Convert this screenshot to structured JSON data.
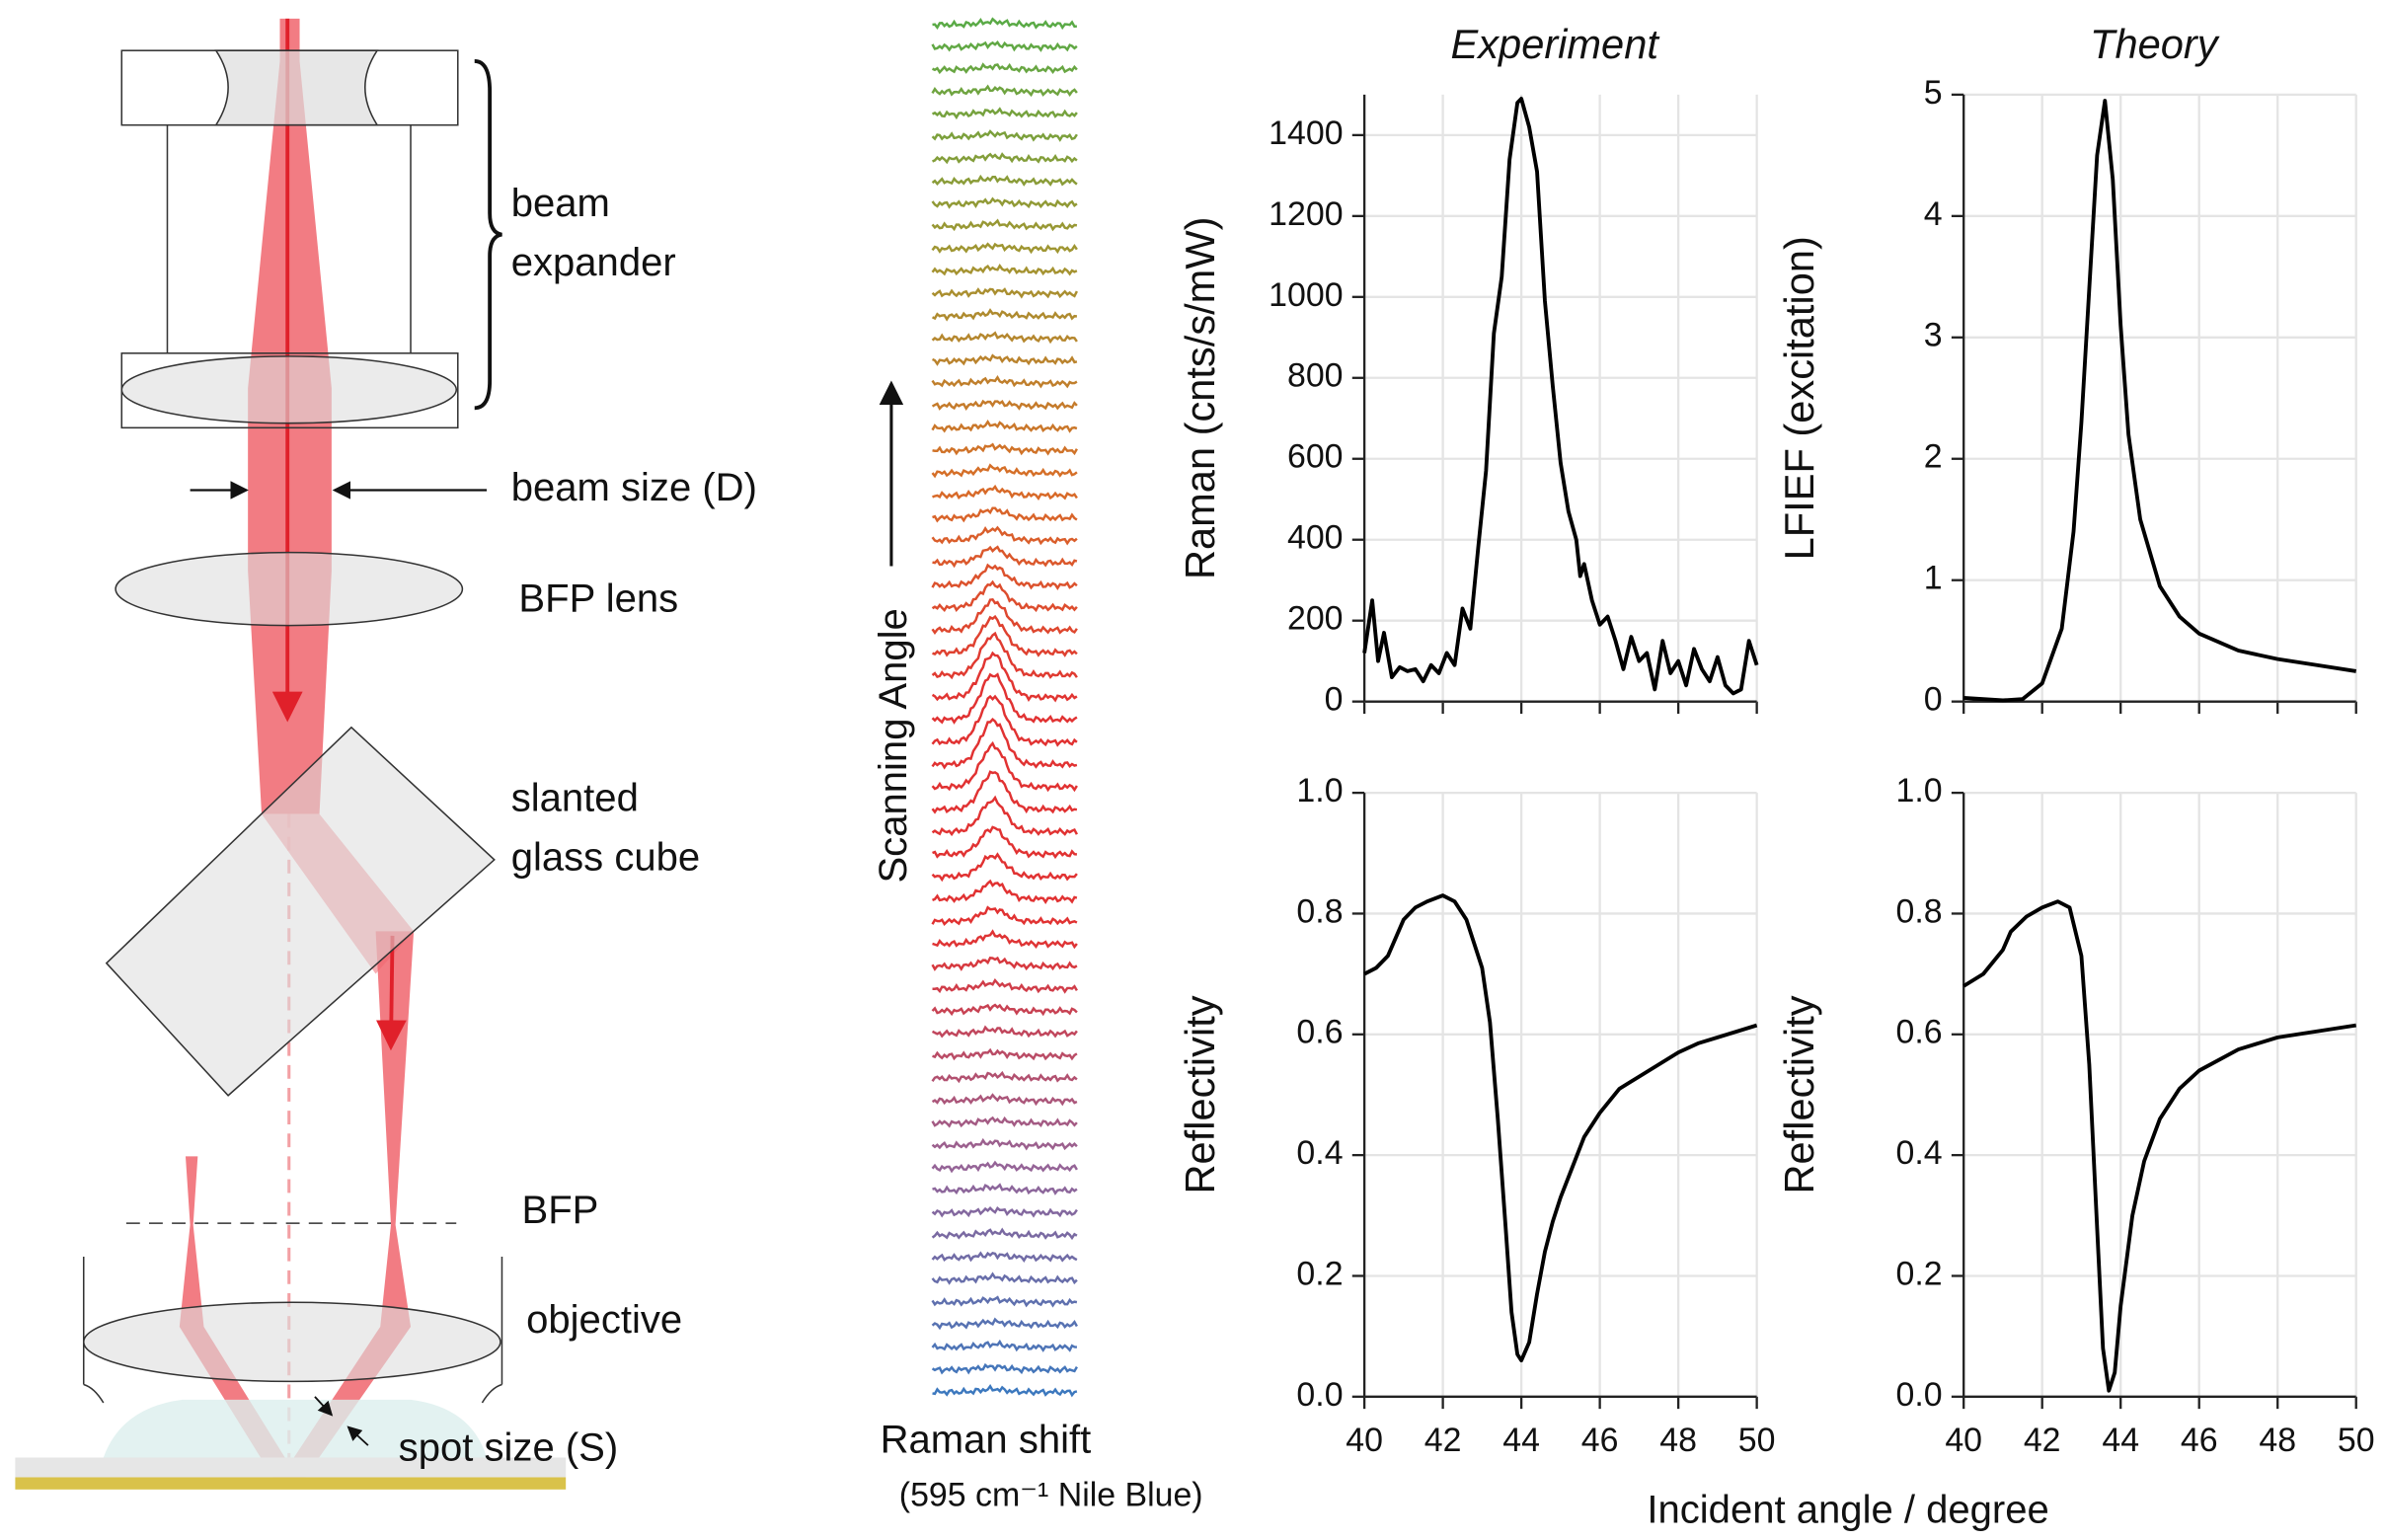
{
  "diagram": {
    "labels": [
      "beam",
      "expander",
      "beam size (D)",
      "BFP lens",
      "slanted",
      "glass cube",
      "BFP",
      "objective",
      "spot size (S)"
    ]
  },
  "waterfall": {
    "ylabel": "Scanning Angle",
    "xlabel": "Raman shift",
    "xlabel_note": "(595 cm⁻¹ Nile Blue)"
  },
  "figure": {
    "xlabel": "Incident angle / degree"
  },
  "chart_data": [
    {
      "type": "line",
      "title": "Experiment",
      "ylabel": "Raman (cnts/s/mW)",
      "color": "#000000",
      "grid": true,
      "show_xtick_labels": false,
      "x": [
        40,
        40.2,
        40.35,
        40.5,
        40.7,
        40.9,
        41.1,
        41.3,
        41.5,
        41.7,
        41.9,
        42.1,
        42.3,
        42.5,
        42.7,
        42.9,
        43.1,
        43.3,
        43.5,
        43.7,
        43.9,
        44.0,
        44.2,
        44.4,
        44.6,
        44.8,
        45.0,
        45.2,
        45.4,
        45.5,
        45.6,
        45.8,
        46.0,
        46.2,
        46.4,
        46.6,
        46.8,
        47.0,
        47.2,
        47.4,
        47.6,
        47.8,
        48.0,
        48.2,
        48.4,
        48.6,
        48.8,
        49.0,
        49.2,
        49.4,
        49.6,
        49.8,
        50
      ],
      "values": [
        120,
        250,
        100,
        170,
        60,
        85,
        75,
        80,
        50,
        90,
        70,
        120,
        90,
        230,
        180,
        380,
        570,
        910,
        1050,
        1340,
        1480,
        1490,
        1420,
        1310,
        990,
        780,
        590,
        470,
        400,
        310,
        340,
        250,
        190,
        210,
        150,
        80,
        160,
        100,
        120,
        30,
        150,
        70,
        100,
        40,
        130,
        80,
        50,
        110,
        40,
        20,
        30,
        150,
        90
      ],
      "xlim": [
        40,
        50
      ],
      "xticks": [
        40,
        42,
        44,
        46,
        48,
        50
      ],
      "ylim": [
        0,
        1500
      ],
      "yticks": [
        0,
        200,
        400,
        600,
        800,
        1000,
        1200,
        1400
      ]
    },
    {
      "type": "line",
      "title": "Theory",
      "ylabel": "LFIEF (excitation)",
      "color": "#000000",
      "grid": true,
      "show_xtick_labels": false,
      "x": [
        40,
        41,
        41.5,
        42,
        42.5,
        42.8,
        43,
        43.2,
        43.4,
        43.6,
        43.8,
        44,
        44.2,
        44.5,
        45,
        45.5,
        46,
        47,
        48,
        49,
        50
      ],
      "values": [
        0.03,
        0.01,
        0.02,
        0.15,
        0.6,
        1.4,
        2.3,
        3.4,
        4.5,
        4.95,
        4.3,
        3.1,
        2.2,
        1.5,
        0.95,
        0.7,
        0.56,
        0.42,
        0.35,
        0.3,
        0.25
      ],
      "xlim": [
        40,
        50
      ],
      "xticks": [
        40,
        42,
        44,
        46,
        48,
        50
      ],
      "ylim": [
        0,
        5
      ],
      "yticks": [
        0,
        1,
        2,
        3,
        4,
        5
      ]
    },
    {
      "type": "line",
      "ylabel": "Reflectivity",
      "color": "#000000",
      "grid": true,
      "show_xtick_labels": true,
      "x": [
        40,
        40.3,
        40.6,
        41,
        41.3,
        41.6,
        42,
        42.3,
        42.6,
        43,
        43.2,
        43.4,
        43.6,
        43.75,
        43.9,
        44,
        44.2,
        44.4,
        44.6,
        44.8,
        45,
        45.3,
        45.6,
        46,
        46.5,
        47,
        47.5,
        48,
        48.5,
        49,
        49.5,
        50
      ],
      "values": [
        0.7,
        0.71,
        0.73,
        0.79,
        0.81,
        0.82,
        0.83,
        0.82,
        0.79,
        0.71,
        0.62,
        0.46,
        0.28,
        0.14,
        0.07,
        0.06,
        0.09,
        0.17,
        0.24,
        0.29,
        0.33,
        0.38,
        0.43,
        0.47,
        0.51,
        0.53,
        0.55,
        0.57,
        0.585,
        0.595,
        0.605,
        0.615
      ],
      "xlim": [
        40,
        50
      ],
      "xticks": [
        40,
        42,
        44,
        46,
        48,
        50
      ],
      "ylim": [
        0,
        1
      ],
      "yticks": [
        {
          "value": 0,
          "label": "0.0"
        },
        {
          "value": 0.2,
          "label": "0.2"
        },
        {
          "value": 0.4,
          "label": "0.4"
        },
        {
          "value": 0.6,
          "label": "0.6"
        },
        {
          "value": 0.8,
          "label": "0.8"
        },
        {
          "value": 1,
          "label": "1.0"
        }
      ]
    },
    {
      "type": "line",
      "ylabel": "Reflectivity",
      "color": "#000000",
      "grid": true,
      "show_xtick_labels": true,
      "x": [
        40,
        40.5,
        41,
        41.2,
        41.6,
        42,
        42.4,
        42.7,
        43,
        43.2,
        43.4,
        43.55,
        43.7,
        43.85,
        44,
        44.3,
        44.6,
        45,
        45.5,
        46,
        47,
        48,
        49,
        50
      ],
      "values": [
        0.68,
        0.7,
        0.74,
        0.77,
        0.795,
        0.81,
        0.82,
        0.81,
        0.73,
        0.55,
        0.28,
        0.08,
        0.01,
        0.04,
        0.15,
        0.3,
        0.39,
        0.46,
        0.51,
        0.54,
        0.575,
        0.595,
        0.605,
        0.615
      ],
      "xlim": [
        40,
        50
      ],
      "xticks": [
        40,
        42,
        44,
        46,
        48,
        50
      ],
      "ylim": [
        0,
        1
      ],
      "yticks": [
        {
          "value": 0,
          "label": "0.0"
        },
        {
          "value": 0.2,
          "label": "0.2"
        },
        {
          "value": 0.4,
          "label": "0.4"
        },
        {
          "value": 0.6,
          "label": "0.6"
        },
        {
          "value": 0.8,
          "label": "0.8"
        },
        {
          "value": 1,
          "label": "1.0"
        }
      ]
    }
  ]
}
